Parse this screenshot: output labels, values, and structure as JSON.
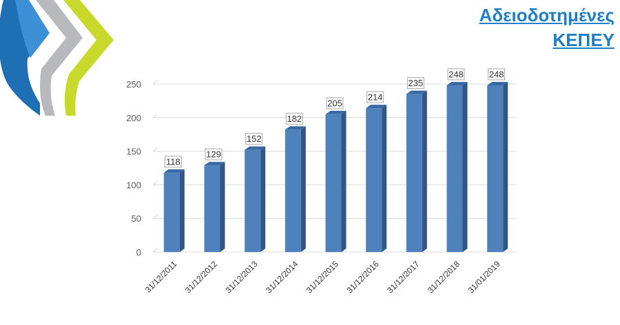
{
  "header": {
    "title_line1": "Αδειοδοτημένες",
    "title_line2": "ΚΕΠΕΥ"
  },
  "colors": {
    "title": "#1f7fc4",
    "bar_front": "#4f81bd",
    "bar_side": "#2e5687",
    "bar_top": "#3a6aa3",
    "grid": "#d9d9d9",
    "logo_blue": "#1f6fb5",
    "logo_gray": "#b7b9bc",
    "logo_green": "#c8d92b"
  },
  "chart_data": {
    "type": "bar",
    "categories": [
      "31/12/2011",
      "31/12/2012",
      "31/12/2013",
      "31/12/2014",
      "31/12/2015",
      "31/12/2016",
      "31/12/2017",
      "31/12/2018",
      "31/01/2019"
    ],
    "values": [
      118,
      129,
      152,
      182,
      205,
      214,
      235,
      248,
      248
    ],
    "title": "",
    "xlabel": "",
    "ylabel": "",
    "ylim": [
      0,
      250
    ],
    "yticks": [
      0,
      50,
      100,
      150,
      200,
      250
    ],
    "grid": true,
    "style": "3d-column",
    "data_labels": true
  }
}
